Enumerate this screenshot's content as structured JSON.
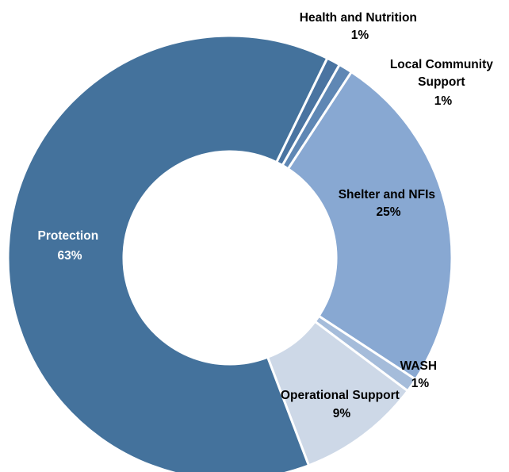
{
  "chart_data": {
    "type": "pie",
    "variant": "donut",
    "title": "",
    "categories": [
      "Health and Nutrition",
      "Local Community Support",
      "Shelter and NFIs",
      "WASH",
      "Operational Support",
      "Protection"
    ],
    "values": [
      1,
      1,
      25,
      1,
      9,
      63
    ],
    "unit": "%",
    "slices": [
      {
        "label": "Health and Nutrition",
        "value": 1,
        "value_label": "1%",
        "color": "#4a74a1",
        "label_color": "#000000"
      },
      {
        "label": "Local Community Support",
        "value": 1,
        "value_label": "1%",
        "color": "#5f87b4",
        "label_color": "#000000"
      },
      {
        "label": "Shelter and NFIs",
        "value": 25,
        "value_label": "25%",
        "color": "#88a8d2",
        "label_color": "#000000"
      },
      {
        "label": "WASH",
        "value": 1,
        "value_label": "1%",
        "color": "#a5bcda",
        "label_color": "#000000"
      },
      {
        "label": "Operational Support",
        "value": 9,
        "value_label": "9%",
        "color": "#cdd8e7",
        "label_color": "#000000"
      },
      {
        "label": "Protection",
        "value": 63,
        "value_label": "63%",
        "color": "#44729c",
        "label_color": "#ffffff"
      }
    ],
    "legend": "none",
    "data_labels": true
  }
}
